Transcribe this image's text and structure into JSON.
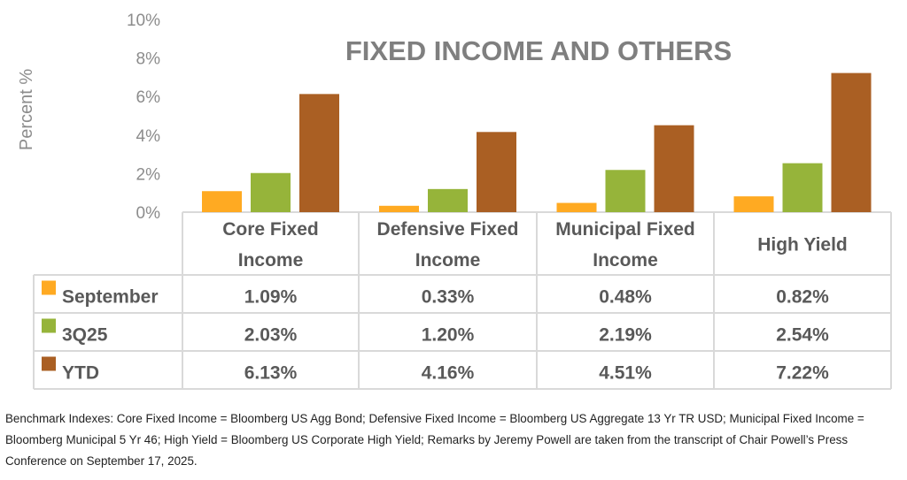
{
  "colors": {
    "September": "#ffaa22",
    "3Q25": "#96b43a",
    "YTD": "#aa5f23",
    "title": "#7f7f7f",
    "axis_text": "#8c8c8c",
    "table_text": "#595959",
    "grid": "#d9d9d9"
  },
  "chart_data": {
    "type": "bar",
    "title": "FIXED INCOME AND OTHERS",
    "ylabel": "Percent %",
    "xlabel": "",
    "ylim": [
      0,
      10
    ],
    "yticks": [
      "0%",
      "2%",
      "4%",
      "6%",
      "8%",
      "10%"
    ],
    "categories": [
      [
        "Core Fixed",
        "Income"
      ],
      [
        "Defensive Fixed",
        "Income"
      ],
      [
        "Municipal Fixed",
        "Income"
      ],
      [
        "High Yield"
      ]
    ],
    "series": [
      {
        "name": "September",
        "values": [
          1.09,
          0.33,
          0.48,
          0.82
        ],
        "labels": [
          "1.09%",
          "0.33%",
          "0.48%",
          "0.82%"
        ]
      },
      {
        "name": "3Q25",
        "values": [
          2.03,
          1.2,
          2.19,
          2.54
        ],
        "labels": [
          "2.03%",
          "1.20%",
          "2.19%",
          "2.54%"
        ]
      },
      {
        "name": "YTD",
        "values": [
          6.13,
          4.16,
          4.51,
          7.22
        ],
        "labels": [
          "6.13%",
          "4.16%",
          "4.51%",
          "7.22%"
        ]
      }
    ],
    "legend": "data-table"
  },
  "footnote": "Benchmark Indexes: Core Fixed Income = Bloomberg US Agg Bond; Defensive Fixed Income = Bloomberg US Aggregate 13 Yr TR USD; Municipal Fixed Income = Bloomberg Municipal 5 Yr 46; High Yield = Bloomberg US Corporate High Yield; Remarks by Jeremy Powell are taken from the transcript of Chair Powell’s Press Conference on September 17, 2025."
}
